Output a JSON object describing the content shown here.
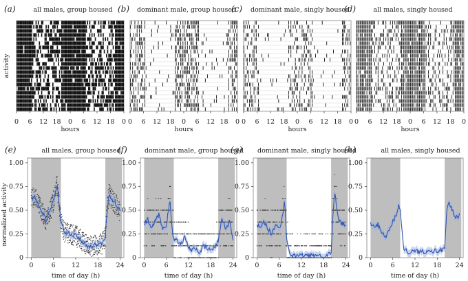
{
  "figure": {
    "actogram_ylabel": "activity",
    "actogram_xlabel": "hours",
    "profile_ylabel": "normalized activity",
    "profile_xlabel": "time of day (h)"
  },
  "actogram_tick_labels": [
    "0",
    "6",
    "12",
    "18",
    "0",
    "6",
    "12",
    "18",
    "0"
  ],
  "profile_x_ticks": [
    "0",
    "6",
    "12",
    "18",
    "24"
  ],
  "profile_y_ticks": [
    "0",
    "0.25",
    "0.50",
    "0.75",
    "1.00"
  ],
  "colors": {
    "line": "#2c54b0",
    "band": "#9fb1de",
    "dark_phase": "#bebebe",
    "points": "#333333",
    "actogram_ink": "#111111"
  },
  "chart_data": [
    {
      "panel": "a",
      "type": "heatmap",
      "title": "all males, group housed",
      "xlim": [
        0,
        48
      ],
      "rows": 22,
      "dark_hours": [
        [
          0,
          7
        ],
        [
          20,
          31
        ],
        [
          44,
          48
        ]
      ],
      "activity_level": 0.9
    },
    {
      "panel": "b",
      "type": "heatmap",
      "title": "dominant male, group housed",
      "xlim": [
        0,
        48
      ],
      "rows": 22,
      "dark_hours": [
        [
          0,
          7
        ],
        [
          20,
          31
        ],
        [
          44,
          48
        ]
      ],
      "activity_level": 0.55
    },
    {
      "panel": "c",
      "type": "heatmap",
      "title": "dominant male, singly housed",
      "xlim": [
        0,
        48
      ],
      "rows": 22,
      "dark_hours": [
        [
          0,
          7
        ],
        [
          20,
          31
        ],
        [
          44,
          48
        ]
      ],
      "activity_level": 0.4
    },
    {
      "panel": "d",
      "type": "heatmap",
      "title": "all males, singly housed",
      "xlim": [
        0,
        48
      ],
      "rows": 22,
      "dark_hours": [
        [
          0,
          7
        ],
        [
          20,
          31
        ],
        [
          44,
          48
        ]
      ],
      "activity_level": 0.75
    },
    {
      "panel": "e",
      "type": "scatter",
      "title": "all males, group housed",
      "xlim": [
        -1,
        25
      ],
      "ylim": [
        0,
        1.05
      ],
      "dark": [
        [
          0,
          8
        ],
        [
          20,
          24.5
        ]
      ],
      "x": [
        0,
        1,
        2,
        3,
        4,
        5,
        6,
        7,
        7.5,
        8,
        9,
        10,
        11,
        12,
        13,
        14,
        15,
        16,
        17,
        18,
        19,
        20,
        20.5,
        21,
        22,
        23,
        24
      ],
      "y": [
        0.62,
        0.65,
        0.55,
        0.47,
        0.4,
        0.48,
        0.6,
        0.78,
        0.55,
        0.38,
        0.27,
        0.25,
        0.24,
        0.23,
        0.2,
        0.16,
        0.13,
        0.12,
        0.13,
        0.14,
        0.14,
        0.22,
        0.52,
        0.68,
        0.6,
        0.55,
        0.48
      ]
    },
    {
      "panel": "f",
      "type": "scatter",
      "title": "dominant male, group housed",
      "xlim": [
        -1,
        25
      ],
      "ylim": [
        0,
        1.05
      ],
      "dark": [
        [
          0,
          8
        ],
        [
          20,
          24.5
        ]
      ],
      "x": [
        0,
        1,
        2,
        3,
        4,
        5,
        6,
        7,
        7.5,
        8,
        9,
        10,
        11,
        12,
        13,
        14,
        15,
        16,
        17,
        18,
        19,
        20,
        21,
        22,
        23,
        24
      ],
      "y": [
        0.35,
        0.4,
        0.3,
        0.38,
        0.45,
        0.3,
        0.35,
        0.6,
        0.3,
        0.2,
        0.18,
        0.15,
        0.22,
        0.1,
        0.08,
        0.1,
        0.05,
        0.12,
        0.1,
        0.08,
        0.1,
        0.18,
        0.42,
        0.3,
        0.38,
        0.2
      ]
    },
    {
      "panel": "g",
      "type": "scatter",
      "title": "dominant male, singly housed",
      "xlim": [
        -1,
        25
      ],
      "ylim": [
        0,
        1.05
      ],
      "dark": [
        [
          0,
          8
        ],
        [
          20,
          24.5
        ]
      ],
      "x": [
        0,
        1,
        2,
        3,
        4,
        5,
        6,
        7,
        7.5,
        8,
        9,
        10,
        11,
        12,
        13,
        14,
        15,
        16,
        17,
        18,
        19,
        20,
        20.5,
        21,
        22,
        23,
        24
      ],
      "y": [
        0.35,
        0.33,
        0.38,
        0.3,
        0.25,
        0.35,
        0.3,
        0.45,
        0.6,
        0.2,
        0.02,
        0.02,
        0.02,
        0.03,
        0.02,
        0.02,
        0.02,
        0.03,
        0.02,
        0.02,
        0.03,
        0.04,
        0.45,
        0.68,
        0.4,
        0.35,
        0.35
      ]
    },
    {
      "panel": "h",
      "type": "line",
      "title": "all males, singly housed",
      "xlim": [
        -1,
        25
      ],
      "ylim": [
        0,
        1.05
      ],
      "dark": [
        [
          0,
          8
        ],
        [
          20,
          24.5
        ]
      ],
      "x": [
        0,
        1,
        2,
        3,
        4,
        5,
        6,
        7,
        7.5,
        8,
        9,
        10,
        11,
        12,
        13,
        14,
        15,
        16,
        17,
        18,
        19,
        20,
        20.5,
        21,
        22,
        23,
        24
      ],
      "y": [
        0.35,
        0.32,
        0.35,
        0.28,
        0.22,
        0.28,
        0.38,
        0.45,
        0.55,
        0.5,
        0.1,
        0.06,
        0.06,
        0.07,
        0.06,
        0.07,
        0.06,
        0.09,
        0.07,
        0.07,
        0.08,
        0.08,
        0.45,
        0.58,
        0.5,
        0.42,
        0.45
      ]
    }
  ]
}
